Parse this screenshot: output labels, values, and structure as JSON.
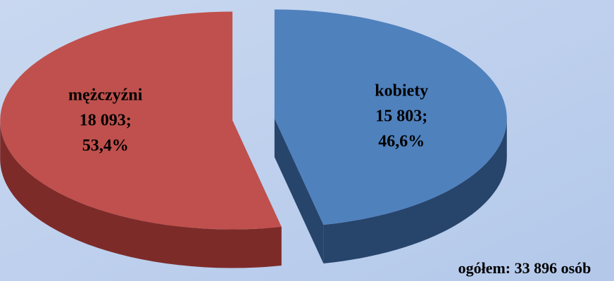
{
  "chart_data": {
    "type": "pie3d",
    "categories": [
      "kobiety",
      "mężczyźni"
    ],
    "values": [
      15803,
      18093
    ],
    "value_labels": [
      "15 803;",
      "18 093;"
    ],
    "percentages": [
      46.6,
      53.4
    ],
    "percent_labels": [
      "46,6%",
      "53,4%"
    ],
    "colors": [
      "#4f81bd",
      "#c0504d"
    ],
    "side_colors": [
      "#27446b",
      "#7d2b29"
    ],
    "annotation": "ogółem: 33 896 osób"
  }
}
